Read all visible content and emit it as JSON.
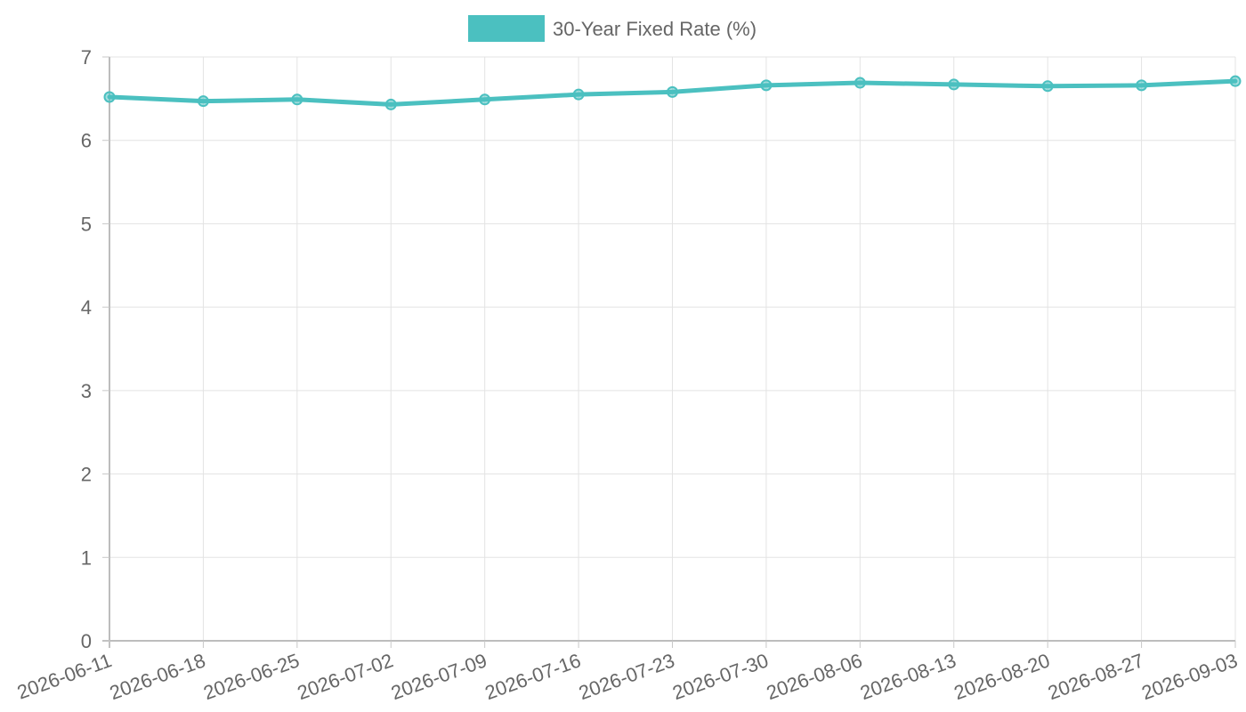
{
  "chart_data": {
    "type": "line",
    "x": [
      "2026-06-11",
      "2026-06-18",
      "2026-06-25",
      "2026-07-02",
      "2026-07-09",
      "2026-07-16",
      "2026-07-23",
      "2026-07-30",
      "2026-08-06",
      "2026-08-13",
      "2026-08-20",
      "2026-08-27",
      "2026-09-03"
    ],
    "series": [
      {
        "name": "30-Year Fixed Rate (%)",
        "values": [
          6.52,
          6.47,
          6.49,
          6.43,
          6.49,
          6.55,
          6.58,
          6.66,
          6.69,
          6.67,
          6.65,
          6.66,
          6.71
        ],
        "color": "#4bc0c0"
      }
    ],
    "ylim": [
      0,
      7
    ],
    "yticks": [
      "0",
      "1",
      "2",
      "3",
      "4",
      "5",
      "6",
      "7"
    ],
    "grid": true,
    "legend_position": "top-center"
  }
}
